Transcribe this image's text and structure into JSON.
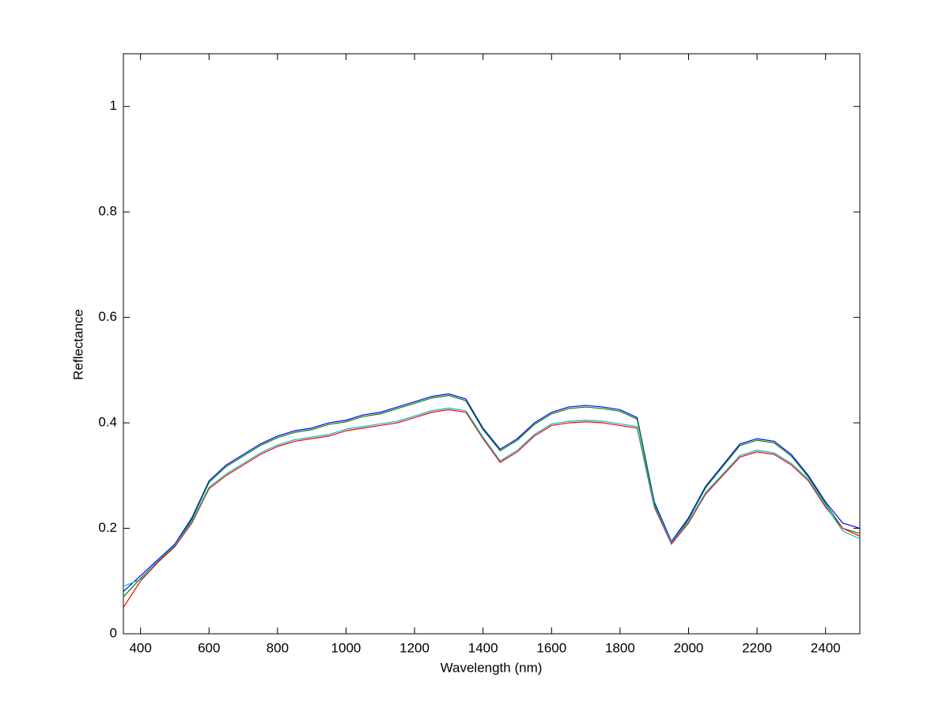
{
  "chart_data": {
    "type": "line",
    "xlabel": "Wavelength (nm)",
    "ylabel": "Reflectance",
    "x": [
      350,
      400,
      450,
      500,
      550,
      600,
      650,
      700,
      750,
      800,
      850,
      900,
      950,
      1000,
      1050,
      1100,
      1150,
      1200,
      1250,
      1300,
      1350,
      1400,
      1450,
      1500,
      1550,
      1600,
      1650,
      1700,
      1750,
      1800,
      1850,
      1900,
      1950,
      2000,
      2050,
      2100,
      2150,
      2200,
      2250,
      2300,
      2350,
      2400,
      2450,
      2500
    ],
    "series": [
      {
        "color": "#0000ff",
        "values": [
          0.08,
          0.11,
          0.14,
          0.17,
          0.22,
          0.29,
          0.32,
          0.34,
          0.36,
          0.375,
          0.385,
          0.39,
          0.4,
          0.405,
          0.415,
          0.42,
          0.43,
          0.44,
          0.45,
          0.455,
          0.445,
          0.39,
          0.35,
          0.37,
          0.4,
          0.42,
          0.43,
          0.433,
          0.43,
          0.425,
          0.41,
          0.25,
          0.175,
          0.22,
          0.28,
          0.32,
          0.36,
          0.37,
          0.365,
          0.34,
          0.3,
          0.25,
          0.21,
          0.2
        ]
      },
      {
        "color": "#008000",
        "values": [
          0.07,
          0.105,
          0.137,
          0.167,
          0.217,
          0.287,
          0.317,
          0.337,
          0.357,
          0.372,
          0.382,
          0.387,
          0.397,
          0.402,
          0.412,
          0.417,
          0.427,
          0.437,
          0.447,
          0.452,
          0.442,
          0.387,
          0.347,
          0.367,
          0.397,
          0.417,
          0.427,
          0.43,
          0.427,
          0.422,
          0.407,
          0.247,
          0.172,
          0.217,
          0.277,
          0.317,
          0.357,
          0.367,
          0.362,
          0.337,
          0.297,
          0.247,
          0.2,
          0.19
        ]
      },
      {
        "color": "#ff0000",
        "values": [
          0.05,
          0.1,
          0.135,
          0.165,
          0.21,
          0.275,
          0.3,
          0.32,
          0.34,
          0.355,
          0.365,
          0.37,
          0.375,
          0.385,
          0.39,
          0.395,
          0.4,
          0.41,
          0.42,
          0.425,
          0.42,
          0.37,
          0.325,
          0.345,
          0.375,
          0.395,
          0.4,
          0.402,
          0.4,
          0.395,
          0.39,
          0.24,
          0.17,
          0.21,
          0.265,
          0.3,
          0.335,
          0.345,
          0.34,
          0.32,
          0.29,
          0.24,
          0.2,
          0.185
        ]
      },
      {
        "color": "#00bfbf",
        "values": [
          0.09,
          0.103,
          0.138,
          0.168,
          0.213,
          0.278,
          0.303,
          0.323,
          0.343,
          0.358,
          0.368,
          0.373,
          0.378,
          0.388,
          0.393,
          0.398,
          0.403,
          0.413,
          0.423,
          0.428,
          0.423,
          0.373,
          0.328,
          0.348,
          0.378,
          0.398,
          0.403,
          0.405,
          0.403,
          0.398,
          0.393,
          0.243,
          0.173,
          0.213,
          0.268,
          0.303,
          0.338,
          0.348,
          0.343,
          0.323,
          0.293,
          0.243,
          0.195,
          0.18
        ]
      }
    ],
    "xlim": [
      350,
      2500
    ],
    "xticks": [
      400,
      600,
      800,
      1000,
      1200,
      1400,
      1600,
      1800,
      2000,
      2200,
      2400
    ],
    "ylim": [
      0,
      1.1
    ],
    "yticks": [
      0,
      0.2,
      0.4,
      0.6,
      0.8,
      1
    ],
    "grid": false
  }
}
